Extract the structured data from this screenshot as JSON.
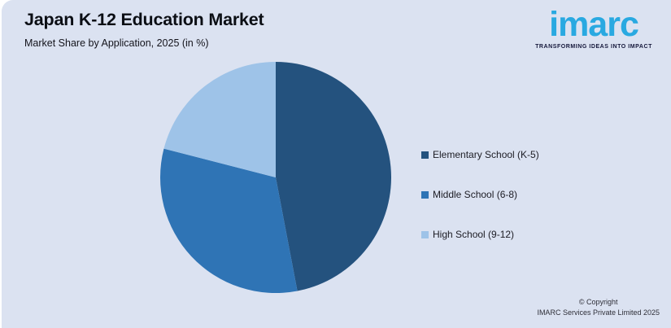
{
  "page": {
    "background": "#dbe2f1",
    "edge_color": "#ffffff"
  },
  "header": {
    "title": "Japan K-12 Education Market",
    "subtitle": "Market Share by Application, 2025 (in %)"
  },
  "logo": {
    "brand": "imarc",
    "tagline": "TRANSFORMING IDEAS INTO IMPACT",
    "brand_color": "#29a9e1",
    "tagline_color": "#14173a"
  },
  "chart_data": {
    "type": "pie",
    "title": "Japan K-12 Education Market",
    "subtitle": "Market Share by Application, 2025 (in %)",
    "categories": [
      "Elementary School (K-5)",
      "Middle School (6-8)",
      "High School (9-12)"
    ],
    "values": [
      47,
      32,
      21
    ],
    "unit": "%",
    "colors": [
      "#24527e",
      "#2f74b5",
      "#9ec3e8"
    ],
    "start_angle_deg": 0,
    "direction": "clockwise",
    "legend_position": "right",
    "data_labels": false
  },
  "footer": {
    "line1": "© Copyright",
    "line2": "IMARC Services Private Limited 2025"
  }
}
